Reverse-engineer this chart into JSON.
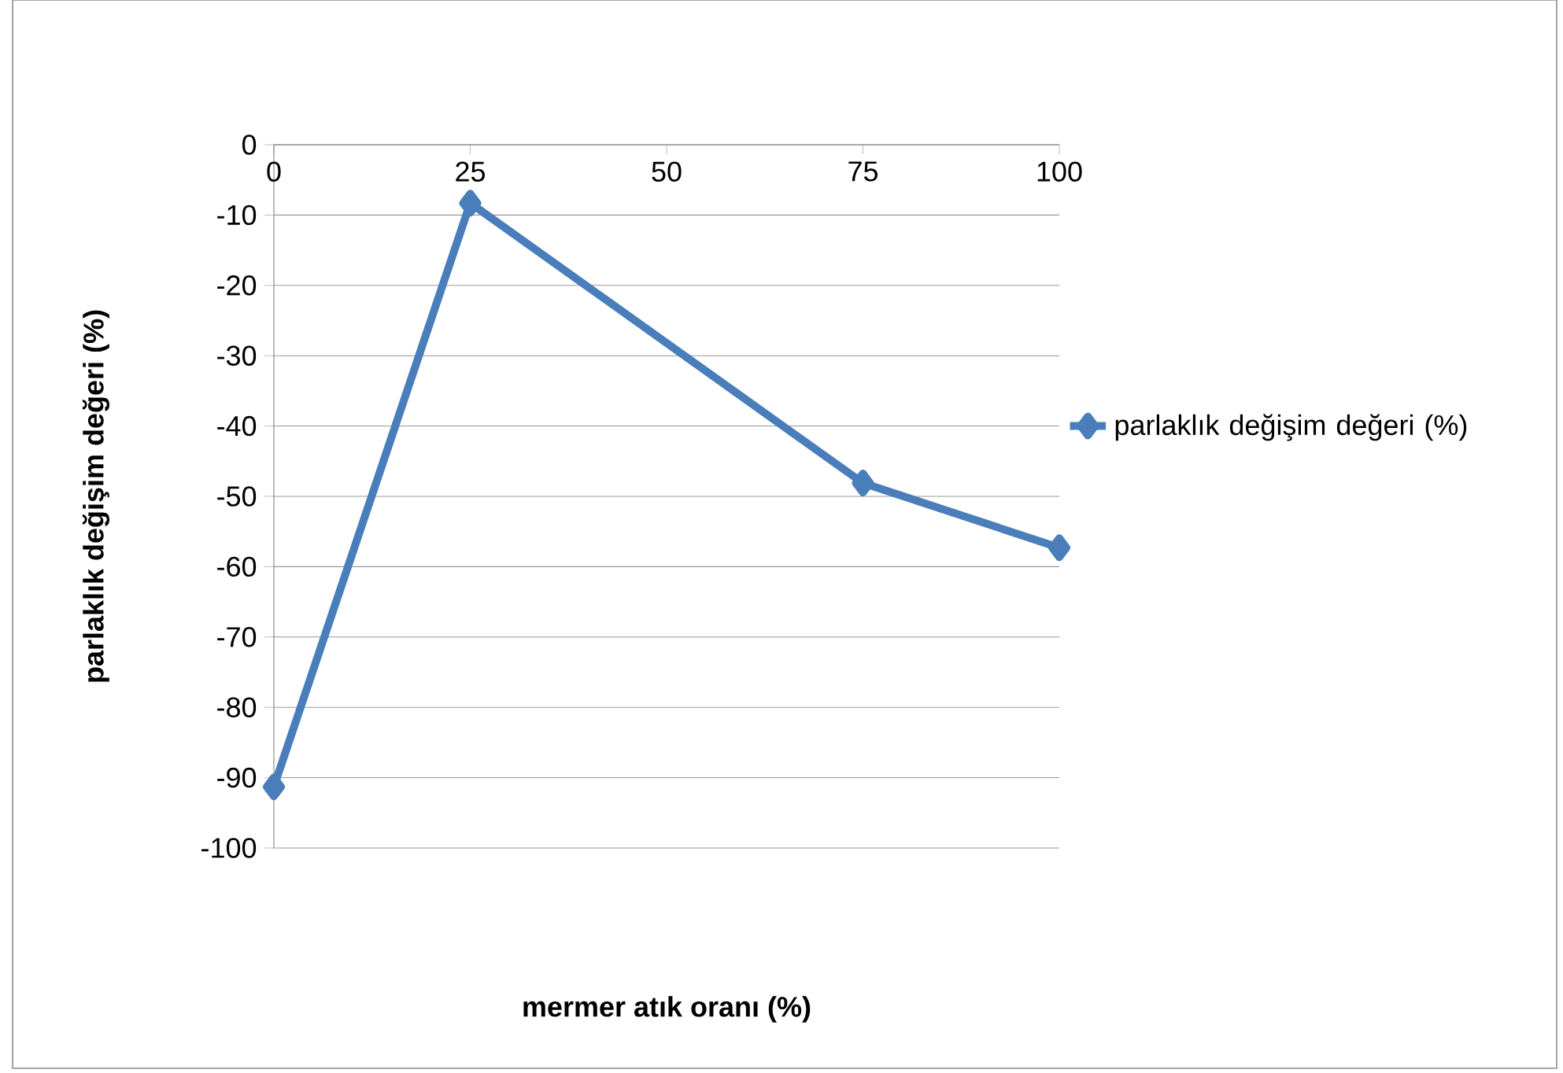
{
  "chart_data": {
    "type": "line",
    "xlabel": "mermer atık oranı (%)",
    "ylabel": "parlaklık değişim değeri (%)",
    "x": [
      0,
      25,
      75,
      100
    ],
    "series": [
      {
        "name": "parlaklık değişim değeri (%)",
        "color": "#4a7ebb",
        "values": [
          -91.3,
          -8.3,
          -48.1,
          -57.3
        ]
      }
    ],
    "xlim": [
      0,
      100
    ],
    "xticks": [
      0,
      25,
      50,
      75,
      100
    ],
    "ylim": [
      -100,
      0
    ],
    "yticks": [
      -100,
      -90,
      -80,
      -70,
      -60,
      -50,
      -40,
      -30,
      -20,
      -10,
      0
    ],
    "grid": "y",
    "legend": "right",
    "marker": "diamond",
    "line_style": "solid"
  }
}
